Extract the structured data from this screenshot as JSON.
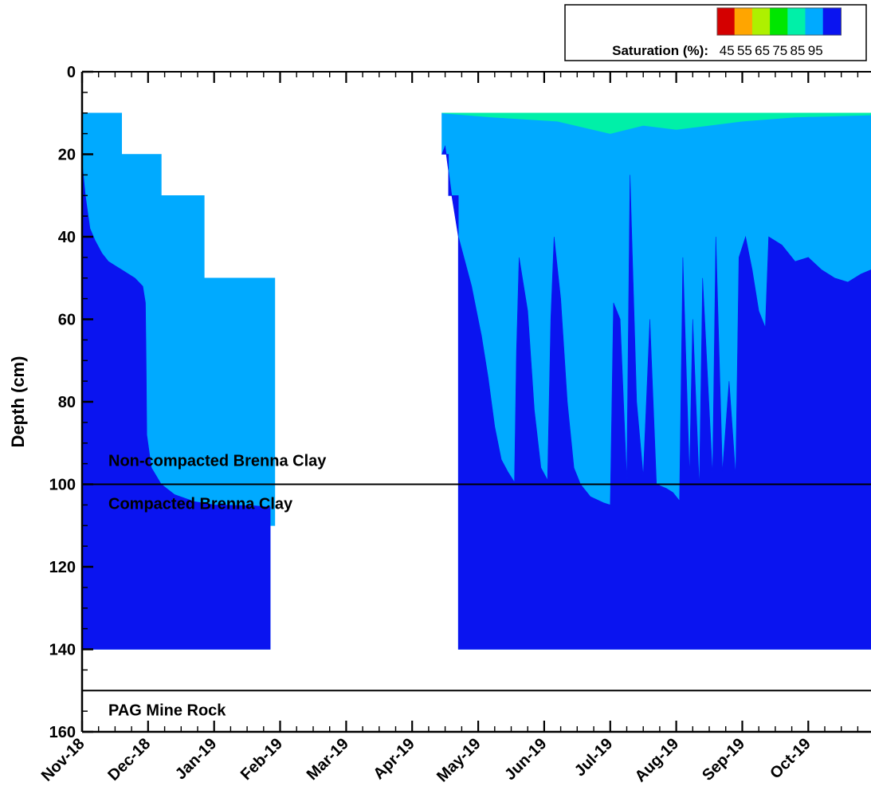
{
  "chart_data": {
    "type": "heatmap",
    "title": "",
    "xlabel": "",
    "ylabel": "Depth (cm)",
    "x_tick_labels": [
      "Nov-18",
      "Dec-18",
      "Jan-19",
      "Feb-19",
      "Mar-19",
      "Apr-19",
      "May-19",
      "Jun-19",
      "Jul-19",
      "Aug-19",
      "Sep-19",
      "Oct-19"
    ],
    "x_range_months": [
      0,
      11.95
    ],
    "y_ticks": [
      0,
      20,
      40,
      60,
      80,
      100,
      120,
      140,
      160
    ],
    "ylim": [
      0,
      160
    ],
    "y_inverted": true,
    "legend": {
      "title": "Saturation (%):",
      "placement": "top-right",
      "levels": [
        45,
        55,
        65,
        75,
        85,
        95
      ],
      "level_labels": [
        "45",
        "55",
        "65",
        "75",
        "85",
        "95"
      ],
      "colors": [
        "#d40000",
        "#ffa500",
        "#aef000",
        "#00e600",
        "#00f0a8",
        "#00aaff",
        "#0a14f0"
      ]
    },
    "layer_boundaries": [
      {
        "depth": 100,
        "label_above": "Non-compacted Brenna Clay",
        "label_below": "Compacted Brenna Clay"
      },
      {
        "depth": 150,
        "label_above": "",
        "label_below": "PAG Mine Rock"
      }
    ],
    "measured_bottom_depth": 140,
    "periods": [
      {
        "name": "winter",
        "start_month": 0,
        "bottom_steps": [
          [
            0,
            140
          ],
          [
            2.85,
            110
          ],
          [
            2.92,
            110
          ]
        ],
        "top_steps": [
          [
            0,
            10
          ],
          [
            0.6,
            20
          ],
          [
            1.2,
            30
          ],
          [
            1.85,
            50
          ],
          [
            2.85,
            50
          ]
        ],
        "high_boundary": [
          [
            0,
            22
          ],
          [
            0.05,
            30
          ],
          [
            0.12,
            38
          ],
          [
            0.2,
            41
          ],
          [
            0.3,
            44
          ],
          [
            0.4,
            46
          ],
          [
            0.5,
            47
          ],
          [
            0.6,
            48
          ],
          [
            0.7,
            49
          ],
          [
            0.8,
            50
          ],
          [
            0.92,
            52
          ],
          [
            0.96,
            56
          ],
          [
            0.97,
            70
          ],
          [
            0.98,
            88
          ],
          [
            1.05,
            96
          ],
          [
            1.2,
            100
          ],
          [
            1.4,
            102.5
          ],
          [
            1.7,
            104.2
          ],
          [
            2.0,
            105
          ],
          [
            2.6,
            105.2
          ],
          [
            2.85,
            105.5
          ]
        ],
        "mid_boundary": []
      },
      {
        "name": "growing_season",
        "start_month": 5.45,
        "bottom_steps": [
          [
            5.45,
            20
          ],
          [
            5.55,
            30
          ],
          [
            5.7,
            140
          ],
          [
            11.95,
            140
          ]
        ],
        "top_depth": 10,
        "high_boundary": [
          [
            5.45,
            20
          ],
          [
            5.5,
            18
          ],
          [
            5.55,
            24
          ],
          [
            5.6,
            30
          ],
          [
            5.7,
            40
          ],
          [
            5.8,
            46
          ],
          [
            5.9,
            52
          ],
          [
            5.95,
            56
          ],
          [
            6.05,
            64
          ],
          [
            6.15,
            74
          ],
          [
            6.25,
            86
          ],
          [
            6.35,
            94
          ],
          [
            6.45,
            97
          ],
          [
            6.55,
            99.5
          ],
          [
            6.58,
            68
          ],
          [
            6.62,
            45
          ],
          [
            6.75,
            58
          ],
          [
            6.85,
            82
          ],
          [
            6.95,
            96
          ],
          [
            7.05,
            99
          ],
          [
            7.1,
            60
          ],
          [
            7.15,
            40
          ],
          [
            7.25,
            55
          ],
          [
            7.35,
            80
          ],
          [
            7.45,
            96
          ],
          [
            7.55,
            100
          ],
          [
            7.7,
            103
          ],
          [
            7.9,
            104.5
          ],
          [
            8.0,
            105
          ],
          [
            8.05,
            56
          ],
          [
            8.15,
            60
          ],
          [
            8.25,
            99
          ],
          [
            8.3,
            25
          ],
          [
            8.4,
            80
          ],
          [
            8.5,
            98
          ],
          [
            8.6,
            60
          ],
          [
            8.7,
            100
          ],
          [
            8.85,
            101
          ],
          [
            8.95,
            102
          ],
          [
            9.05,
            104
          ],
          [
            9.1,
            45
          ],
          [
            9.2,
            98
          ],
          [
            9.25,
            60
          ],
          [
            9.35,
            101
          ],
          [
            9.4,
            50
          ],
          [
            9.55,
            98
          ],
          [
            9.6,
            40
          ],
          [
            9.7,
            97
          ],
          [
            9.8,
            75
          ],
          [
            9.9,
            98
          ],
          [
            9.95,
            45
          ],
          [
            10.05,
            40
          ],
          [
            10.15,
            48
          ],
          [
            10.25,
            58
          ],
          [
            10.35,
            62
          ],
          [
            10.4,
            40
          ],
          [
            10.6,
            42
          ],
          [
            10.8,
            46
          ],
          [
            11.0,
            45
          ],
          [
            11.2,
            48
          ],
          [
            11.4,
            50
          ],
          [
            11.6,
            51
          ],
          [
            11.8,
            49
          ],
          [
            11.95,
            48
          ]
        ],
        "mid_boundary": [
          [
            5.45,
            10
          ],
          [
            6.2,
            11
          ],
          [
            7.2,
            12
          ],
          [
            8.0,
            15
          ],
          [
            8.5,
            13
          ],
          [
            9.0,
            14
          ],
          [
            9.5,
            13
          ],
          [
            10.0,
            12
          ],
          [
            10.8,
            11
          ],
          [
            11.95,
            10.5
          ]
        ]
      }
    ]
  }
}
